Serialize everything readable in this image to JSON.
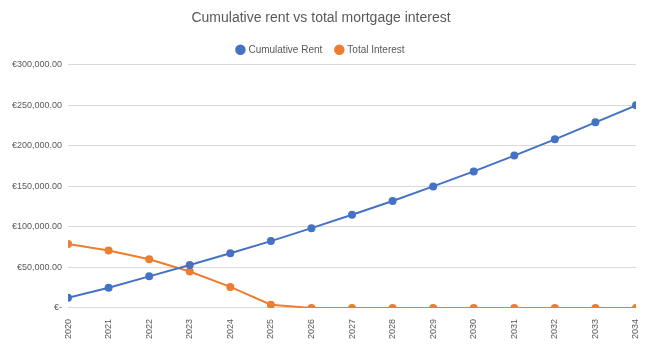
{
  "chart_data": {
    "type": "line",
    "title": "Cumulative rent vs total mortgage interest",
    "categories": [
      "2020",
      "2021",
      "2022",
      "2023",
      "2024",
      "2025",
      "2026",
      "2027",
      "2028",
      "2029",
      "2030",
      "2031",
      "2032",
      "2033",
      "2034"
    ],
    "series": [
      {
        "name": "Cumulative Rent",
        "color": "#4472c4",
        "marker": "circle",
        "line_style": "solid",
        "values": [
          12500,
          25000,
          39000,
          53000,
          67500,
          82500,
          98500,
          115000,
          132000,
          150000,
          168500,
          188000,
          208000,
          229000,
          250000
        ]
      },
      {
        "name": "Total Interest",
        "color": "#ed7d31",
        "marker": "circle",
        "line_style": "solid",
        "values": [
          79000,
          71000,
          60000,
          45000,
          26000,
          4000,
          0,
          0,
          0,
          0,
          0,
          0,
          0,
          0,
          0
        ]
      }
    ],
    "ylim": [
      0,
      300000
    ],
    "yticks": [
      {
        "value": 0,
        "label": "€-"
      },
      {
        "value": 50000,
        "label": "€50,000.00"
      },
      {
        "value": 100000,
        "label": "€100,000.00"
      },
      {
        "value": 150000,
        "label": "€150,000.00"
      },
      {
        "value": 200000,
        "label": "€200,000.00"
      },
      {
        "value": 250000,
        "label": "€250,000.00"
      },
      {
        "value": 300000,
        "label": "€300,000.00"
      }
    ],
    "grid": true,
    "legend": "top"
  }
}
